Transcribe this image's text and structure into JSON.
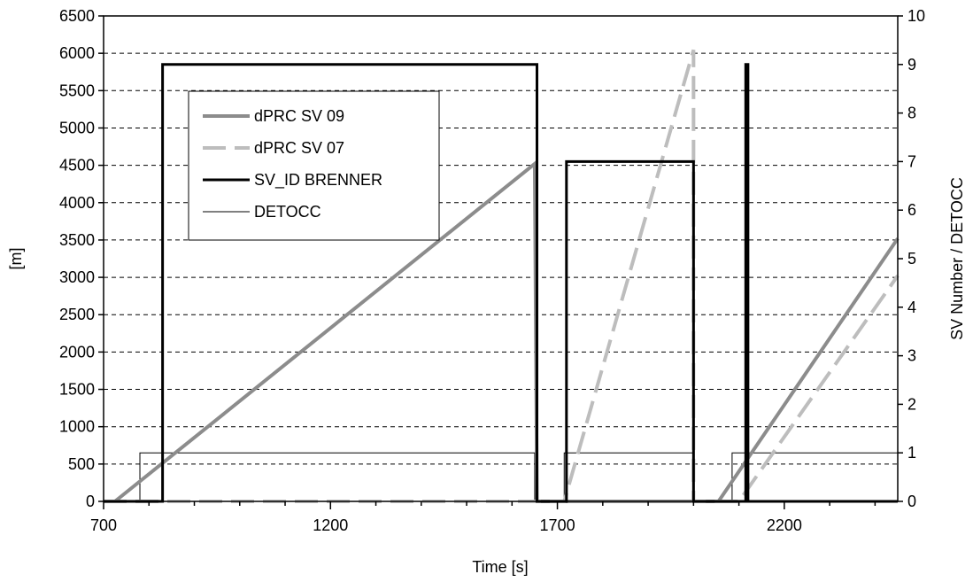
{
  "chart_data": {
    "type": "line",
    "title": "",
    "xlabel": "Time [s]",
    "ylabel": "[m]",
    "y2label": "SV Number / DETOCC",
    "xlim": [
      700,
      2450
    ],
    "ylim": [
      0,
      6500
    ],
    "y2lim": [
      0,
      10
    ],
    "xticks": [
      700,
      1200,
      1700,
      2200
    ],
    "yticks": [
      0,
      500,
      1000,
      1500,
      2000,
      2500,
      3000,
      3500,
      4000,
      4500,
      5000,
      5500,
      6000,
      6500
    ],
    "y2ticks": [
      0,
      1,
      2,
      3,
      4,
      5,
      6,
      7,
      8,
      9,
      10
    ],
    "grid": "horizontal-dashed",
    "legend_position": "upper-left",
    "series": [
      {
        "name": "dPRC SV 09",
        "axis": "left",
        "color": "#8c8c8c",
        "style": "solid-thick",
        "points": [
          [
            700,
            0
          ],
          [
            725,
            0
          ],
          [
            1650,
            4520
          ],
          [
            1655,
            0
          ],
          [
            2055,
            0
          ],
          [
            2450,
            3520
          ]
        ]
      },
      {
        "name": "dPRC SV 07",
        "axis": "right",
        "color": "#bdbdbd",
        "style": "dashed-thick",
        "points": [
          [
            700,
            0
          ],
          [
            1715,
            0
          ],
          [
            2000,
            9.3
          ],
          [
            2000,
            0
          ],
          [
            2100,
            0
          ],
          [
            2450,
            4.65
          ]
        ]
      },
      {
        "name": "SV_ID BRENNER",
        "axis": "right",
        "color": "#000000",
        "style": "solid-medium",
        "points": [
          [
            700,
            0
          ],
          [
            830,
            0
          ],
          [
            830,
            9
          ],
          [
            1655,
            9
          ],
          [
            1655,
            0
          ],
          [
            1720,
            0
          ],
          [
            1720,
            7
          ],
          [
            2000,
            7
          ],
          [
            2000,
            0
          ],
          [
            2115,
            0
          ],
          [
            2115,
            9
          ],
          [
            2120,
            9
          ],
          [
            2120,
            0
          ],
          [
            2450,
            0
          ]
        ]
      },
      {
        "name": "DETOCC",
        "axis": "right",
        "color": "#000000",
        "style": "solid-thin",
        "points": [
          [
            700,
            0
          ],
          [
            780,
            0
          ],
          [
            780,
            1
          ],
          [
            1650,
            1
          ],
          [
            1650,
            0
          ],
          [
            1715,
            0
          ],
          [
            1715,
            1
          ],
          [
            2000,
            1
          ],
          [
            2000,
            0
          ],
          [
            2085,
            0
          ],
          [
            2085,
            1
          ],
          [
            2450,
            1
          ]
        ]
      }
    ]
  }
}
